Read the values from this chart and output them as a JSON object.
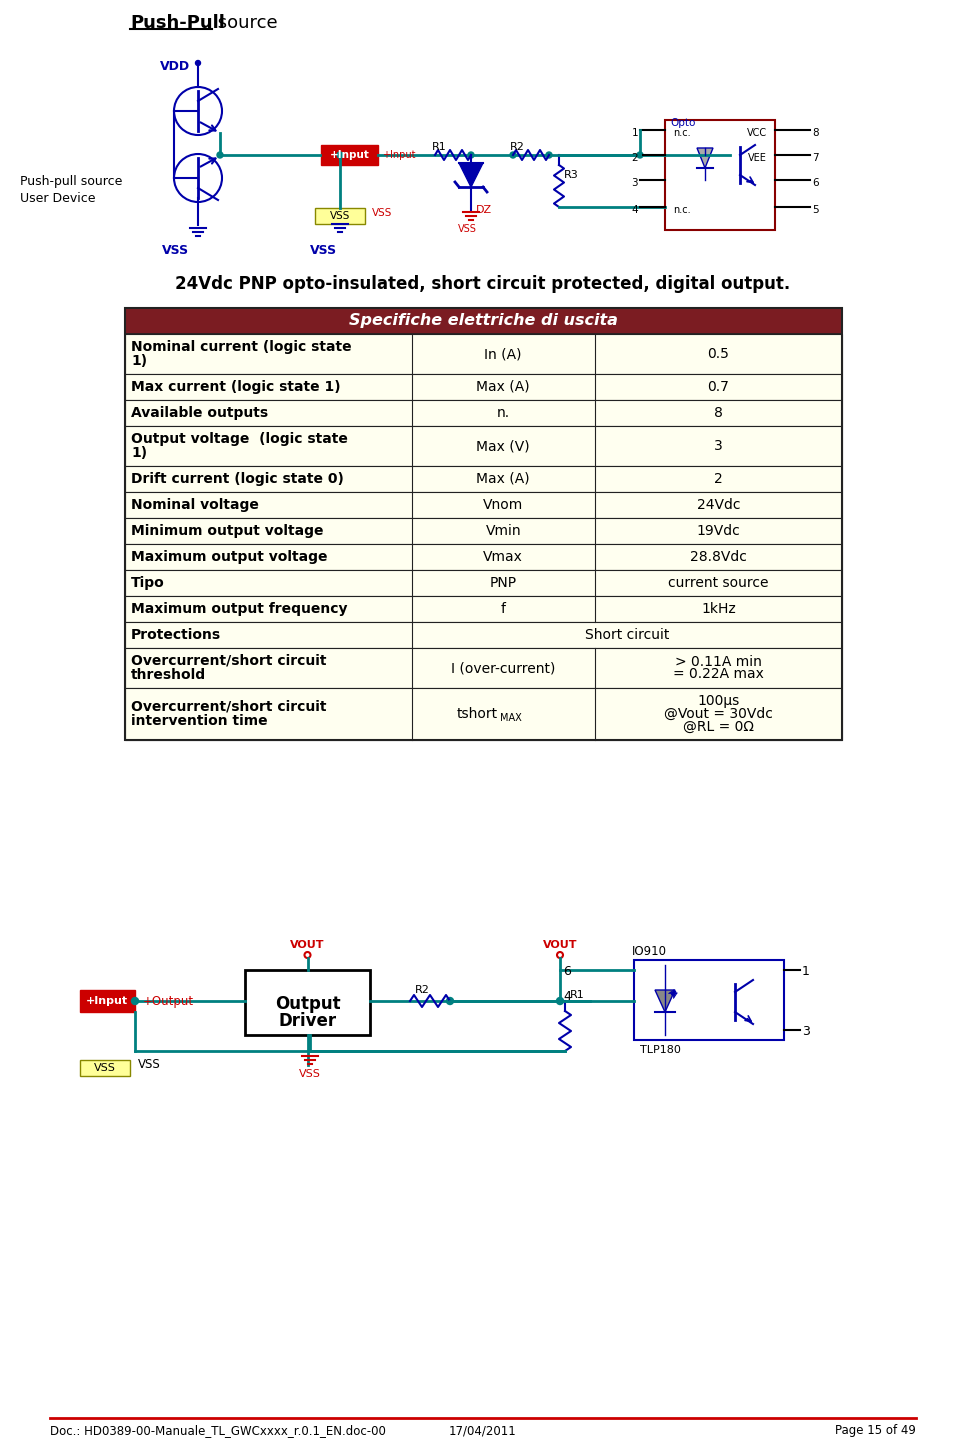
{
  "title_bold": "Push-Pull",
  "title_regular": " source",
  "subtitle": "24Vdc PNP opto-insulated, short circuit protected, digital output.",
  "table_header": "Specifiche elettriche di uscita",
  "table_header_bg": "#7B1C22",
  "table_header_fg": "#FFFFFF",
  "table_row_bg": "#FFFFF0",
  "table_border": "#222222",
  "table_rows": [
    [
      "Nominal current (logic state\n1)",
      "In (A)",
      "0.5"
    ],
    [
      "Max current (logic state 1)",
      "Max (A)",
      "0.7"
    ],
    [
      "Available outputs",
      "n.",
      "8"
    ],
    [
      "Output voltage  (logic state\n1)",
      "Max (V)",
      "3"
    ],
    [
      "Drift current (logic state 0)",
      "Max (A)",
      "2"
    ],
    [
      "Nominal voltage",
      "Vnom",
      "24Vdc"
    ],
    [
      "Minimum output voltage",
      "Vmin",
      "19Vdc"
    ],
    [
      "Maximum output voltage",
      "Vmax",
      "28.8Vdc"
    ],
    [
      "Tipo",
      "PNP",
      "current source"
    ],
    [
      "Maximum output frequency",
      "f",
      "1kHz"
    ],
    [
      "Protections",
      "Short circuit",
      ""
    ],
    [
      "Overcurrent/short circuit\nthreshold",
      "I (over-current)",
      "> 0.11A min\n= 0.22A max"
    ],
    [
      "Overcurrent/short circuit\nintervention time",
      "tshortMAX",
      "100μs\n@Vout = 30Vdc\n@RL = 0Ω"
    ]
  ],
  "footer_left": "Doc.: HD0389-00-Manuale_TL_GWCxxxx_r.0.1_EN.doc-00",
  "footer_center": "17/04/2011",
  "footer_right": "Page 15 of 49",
  "footer_line_color": "#CC0000",
  "bg_color": "#FFFFFF",
  "wire_color": "#008080",
  "blue_color": "#0000AA",
  "red_color": "#CC0000",
  "dark_red": "#880000"
}
